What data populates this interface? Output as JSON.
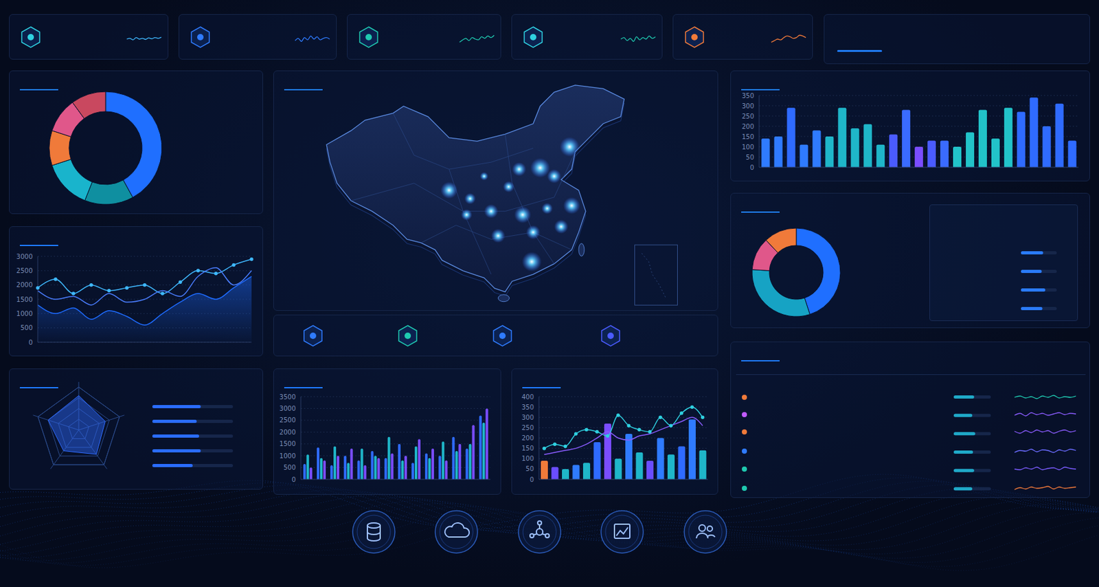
{
  "chart_data": [
    {
      "type": "pie",
      "values": [
        42,
        14,
        14,
        10,
        10,
        10
      ],
      "colors": [
        "#1f6fff",
        "#0f8fa0",
        "#19b4cc",
        "#f07a3a",
        "#e0578a",
        "#c9485f"
      ]
    },
    {
      "type": "line",
      "categories": [
        null,
        null,
        null,
        null,
        null,
        null,
        null,
        null,
        null,
        null,
        null,
        null,
        null
      ],
      "series": [
        {
          "type": "line",
          "color": "#3fb8ff",
          "marker": "circle",
          "values": [
            1900,
            2200,
            1700,
            2000,
            1800,
            1900,
            2000,
            1700,
            2100,
            2500,
            2400,
            2700,
            2900
          ]
        },
        {
          "type": "line",
          "color": "#4a7dff",
          "values": [
            1800,
            1500,
            1600,
            1300,
            1700,
            1400,
            1500,
            1800,
            1600,
            2300,
            2600,
            2000,
            2500
          ]
        },
        {
          "type": "area",
          "color": "#1e6bff",
          "values": [
            1300,
            1000,
            1200,
            800,
            1100,
            900,
            600,
            1000,
            1400,
            1700,
            1500,
            1900,
            2300
          ]
        }
      ],
      "ylim": [
        0,
        3000
      ],
      "yticks": [
        0,
        500,
        1000,
        1500,
        2000,
        2500,
        3000
      ],
      "grid": true
    },
    {
      "type": "radar",
      "categories": [
        null,
        null,
        null,
        null,
        null
      ],
      "values": [
        80,
        65,
        70,
        60,
        75
      ],
      "color": "#2f6bff",
      "ylim": [
        0,
        100
      ],
      "tick_labels": false
    },
    {
      "type": "bar",
      "orientation": "horizontal",
      "categories": [
        null,
        null,
        null,
        null,
        null
      ],
      "values": [
        60,
        55,
        58,
        60,
        50
      ],
      "color": "#2a6cff",
      "xlim": [
        0,
        100
      ],
      "tick_labels": false
    },
    {
      "type": "bar",
      "categories": [
        null,
        null,
        null,
        null,
        null,
        null,
        null,
        null,
        null,
        null,
        null,
        null,
        null,
        null
      ],
      "series": [
        {
          "color": "#2f6bff",
          "values": [
            650,
            1350,
            600,
            1000,
            800,
            1200,
            900,
            1500,
            700,
            1100,
            1000,
            1800,
            1300,
            2700
          ]
        },
        {
          "color": "#1fb6c9",
          "values": [
            1050,
            900,
            1400,
            700,
            1300,
            1000,
            1800,
            800,
            1400,
            900,
            1600,
            1200,
            1500,
            2400
          ]
        },
        {
          "color": "#7a4dff",
          "values": [
            500,
            800,
            1000,
            1300,
            600,
            900,
            1100,
            1000,
            1700,
            1300,
            800,
            1500,
            2300,
            3000
          ]
        }
      ],
      "ylim": [
        0,
        3500
      ],
      "yticks": [
        0,
        500,
        1000,
        1500,
        2000,
        2500,
        3000,
        3500
      ],
      "grid": true
    },
    {
      "type": "bar",
      "categories": [
        null,
        null,
        null,
        null,
        null,
        null,
        null,
        null,
        null,
        null,
        null,
        null,
        null,
        null,
        null,
        null
      ],
      "series": [
        {
          "type": "bar",
          "colors": [
            "#f07a3a",
            "#6a4dff",
            "#1fb6c9",
            "#2f7bff",
            "#1fb6c9",
            "#2f6bff",
            "#7a4dff",
            "#1fb6c9",
            "#2f7bff",
            "#1fb6c9",
            "#6a4dff",
            "#2f7bff",
            "#1fb6c9",
            "#2f6bff",
            "#2f7bff",
            "#1fb6c9"
          ],
          "values": [
            90,
            60,
            50,
            70,
            80,
            180,
            270,
            100,
            220,
            130,
            90,
            200,
            120,
            160,
            290,
            140
          ]
        },
        {
          "type": "line",
          "color": "#2fd0e0",
          "marker": "circle",
          "values": [
            150,
            170,
            160,
            220,
            240,
            230,
            210,
            310,
            260,
            240,
            230,
            300,
            260,
            320,
            350,
            300
          ]
        },
        {
          "type": "line",
          "color": "#8a5cff",
          "values": [
            120,
            130,
            140,
            150,
            170,
            200,
            230,
            200,
            190,
            210,
            220,
            240,
            260,
            280,
            300,
            260
          ]
        }
      ],
      "ylim": [
        0,
        400
      ],
      "yticks": [
        0,
        50,
        100,
        150,
        200,
        250,
        300,
        350,
        400
      ],
      "grid": true
    },
    {
      "type": "bar",
      "categories": [
        null,
        null,
        null,
        null,
        null,
        null,
        null,
        null,
        null,
        null,
        null,
        null,
        null,
        null,
        null,
        null,
        null,
        null,
        null,
        null,
        null,
        null,
        null,
        null,
        null
      ],
      "values": [
        140,
        150,
        290,
        110,
        180,
        150,
        290,
        190,
        210,
        110,
        160,
        280,
        100,
        130,
        130,
        100,
        170,
        280,
        140,
        290,
        270,
        340,
        200,
        310,
        130
      ],
      "colors": [
        "#2f7bff",
        "#2f7bff",
        "#2f6bff",
        "#2f7bff",
        "#2f7bff",
        "#1fb6c9",
        "#1fb6c9",
        "#1fb6c9",
        "#1fb6c9",
        "#1fb6c9",
        "#4a5bff",
        "#3a6bff",
        "#7a4dff",
        "#4a5bff",
        "#3a6bff",
        "#22c3c9",
        "#22c3c9",
        "#22c3c9",
        "#22c3c9",
        "#22c3c9",
        "#2f6bff",
        "#2f6bff",
        "#2f6bff",
        "#2f6bff",
        "#2f6bff"
      ],
      "ylim": [
        0,
        350
      ],
      "yticks": [
        0,
        50,
        100,
        150,
        200,
        250,
        300,
        350
      ],
      "grid": true
    },
    {
      "type": "pie",
      "values": [
        45,
        31,
        12,
        12
      ],
      "colors": [
        "#1f6fff",
        "#16a3c4",
        "#e0578a",
        "#f07a3a"
      ]
    },
    {
      "type": "bar",
      "orientation": "horizontal",
      "categories": [
        null,
        null,
        null,
        null
      ],
      "values": [
        62,
        58,
        68,
        60
      ],
      "color": "#2a7bff",
      "xlim": [
        0,
        100
      ],
      "tick_labels": false
    },
    {
      "type": "bar",
      "orientation": "horizontal",
      "categories": [
        null,
        null,
        null,
        null,
        null,
        null
      ],
      "values": [
        55,
        50,
        58,
        52,
        55,
        50
      ],
      "color": "#1fa9c8",
      "xlim": [
        0,
        100
      ],
      "tick_labels": false
    },
    {
      "type": "line",
      "tick_labels": false,
      "ylim": [
        0,
        100
      ],
      "series": [
        {
          "color": "#3fb8ff",
          "values": [
            50,
            55,
            45,
            60,
            50,
            55,
            48,
            58,
            52,
            60,
            55,
            62
          ]
        },
        {
          "color": "#2f7bff",
          "values": [
            40,
            55,
            35,
            60,
            45,
            70,
            50,
            65,
            45,
            55,
            60,
            50
          ]
        },
        {
          "color": "#1fc9b0",
          "values": [
            30,
            45,
            55,
            40,
            60,
            50,
            45,
            65,
            55,
            70,
            60,
            75
          ]
        },
        {
          "color": "#1fc9b0",
          "values": [
            50,
            60,
            40,
            55,
            35,
            65,
            45,
            60,
            50,
            70,
            55,
            65
          ]
        },
        {
          "color": "#f07a3a",
          "values": [
            30,
            40,
            50,
            45,
            60,
            70,
            65,
            55,
            60,
            75,
            70,
            60
          ]
        }
      ]
    },
    {
      "type": "line",
      "tick_labels": false,
      "ylim": [
        0,
        100
      ],
      "series": [
        {
          "color": "#1fc9b0",
          "values": [
            50,
            60,
            45,
            55,
            40,
            60,
            50,
            65,
            45,
            55,
            50,
            60
          ]
        },
        {
          "color": "#8a5cff",
          "values": [
            45,
            60,
            40,
            65,
            50,
            60,
            45,
            55,
            65,
            50,
            60,
            55
          ]
        },
        {
          "color": "#8a5cff",
          "values": [
            55,
            40,
            60,
            45,
            65,
            50,
            60,
            40,
            55,
            65,
            50,
            60
          ]
        },
        {
          "color": "#6a6bff",
          "values": [
            40,
            55,
            50,
            65,
            45,
            60,
            55,
            40,
            60,
            50,
            65,
            55
          ]
        },
        {
          "color": "#7a5cff",
          "values": [
            50,
            45,
            60,
            50,
            65,
            45,
            55,
            60,
            45,
            65,
            55,
            50
          ]
        },
        {
          "color": "#f07a3a",
          "values": [
            40,
            55,
            45,
            60,
            50,
            55,
            65,
            45,
            60,
            50,
            55,
            60
          ]
        }
      ]
    }
  ]
}
